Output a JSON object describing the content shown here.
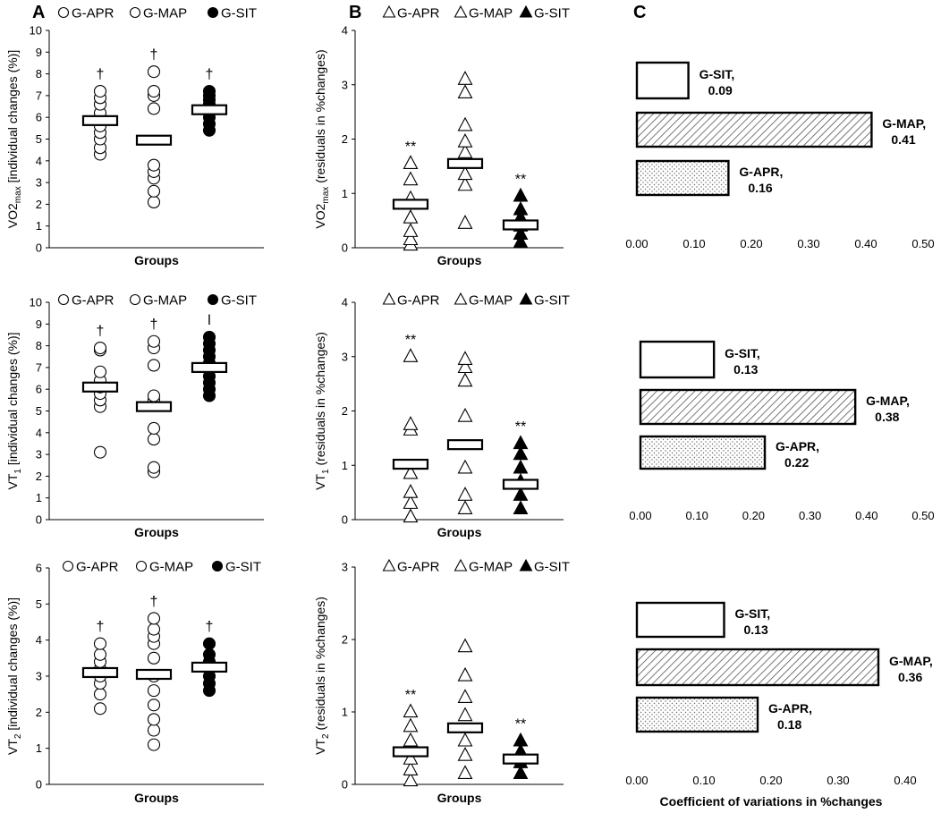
{
  "panel_letters": [
    "A",
    "B",
    "C"
  ],
  "chart_data": [
    {
      "id": "A1",
      "type": "scatter",
      "panel": "A",
      "row": 0,
      "xlabel": "Groups",
      "ylabel_main": "VO2",
      "ylabel_sub": "max",
      "ylabel_rest": " [individual changes (%)]",
      "ylim": [
        0,
        10
      ],
      "yticks": [
        0,
        1,
        2,
        3,
        4,
        5,
        6,
        7,
        8,
        9,
        10
      ],
      "legend": [
        "G-APR",
        "G-MAP",
        "G-SIT"
      ],
      "series": [
        {
          "name": "G-APR",
          "marker": "open-circle",
          "mean": 5.85,
          "values": [
            4.3,
            4.6,
            5.0,
            5.3,
            5.6,
            5.9,
            6.2,
            6.6,
            6.9,
            7.2
          ],
          "annotation": "†"
        },
        {
          "name": "G-MAP",
          "marker": "open-circle",
          "mean": 4.95,
          "values": [
            2.1,
            2.6,
            3.2,
            3.5,
            3.8,
            6.4,
            7.0,
            7.2,
            8.1
          ],
          "annotation": "†"
        },
        {
          "name": "G-SIT",
          "marker": "filled-circle",
          "mean": 6.35,
          "values": [
            5.4,
            5.7,
            6.0,
            6.2,
            6.4,
            6.6,
            6.8,
            7.0,
            7.2
          ],
          "annotation": "†"
        }
      ]
    },
    {
      "id": "A2",
      "type": "scatter",
      "panel": "A",
      "row": 1,
      "xlabel": "Groups",
      "ylabel_main": "VT",
      "ylabel_sub": "1",
      "ylabel_rest": " [individual changes (%)]",
      "ylim": [
        0,
        10
      ],
      "yticks": [
        0,
        1,
        2,
        3,
        4,
        5,
        6,
        7,
        8,
        9,
        10
      ],
      "legend": [
        "G-APR",
        "G-MAP",
        "G-SIT"
      ],
      "series": [
        {
          "name": "G-APR",
          "marker": "open-circle",
          "mean": 6.1,
          "values": [
            3.1,
            5.2,
            5.5,
            5.8,
            6.1,
            6.4,
            6.8,
            7.8,
            7.9
          ],
          "annotation": "†"
        },
        {
          "name": "G-MAP",
          "marker": "open-circle",
          "mean": 5.2,
          "values": [
            2.2,
            2.4,
            3.7,
            4.2,
            5.5,
            5.7,
            7.1,
            7.9,
            8.2
          ],
          "annotation": "†"
        },
        {
          "name": "G-SIT",
          "marker": "filled-circle",
          "mean": 7.0,
          "values": [
            5.7,
            6.0,
            6.3,
            6.6,
            6.9,
            7.2,
            7.5,
            7.8,
            8.1,
            8.4
          ],
          "annotation": "ǀ"
        }
      ]
    },
    {
      "id": "A3",
      "type": "scatter",
      "panel": "A",
      "row": 2,
      "xlabel": "Groups",
      "ylabel_main": "VT",
      "ylabel_sub": "2",
      "ylabel_rest": " [individual changes (%)]",
      "ylim": [
        0,
        6
      ],
      "yticks": [
        0,
        1,
        2,
        3,
        4,
        5,
        6
      ],
      "legend": [
        "G-APR",
        "G-MAP",
        "G-SIT"
      ],
      "series": [
        {
          "name": "G-APR",
          "marker": "open-circle",
          "mean": 3.1,
          "values": [
            2.1,
            2.5,
            2.8,
            3.0,
            3.2,
            3.4,
            3.6,
            3.9
          ],
          "annotation": "†"
        },
        {
          "name": "G-MAP",
          "marker": "open-circle",
          "mean": 3.05,
          "values": [
            1.1,
            1.5,
            1.8,
            2.2,
            2.6,
            3.0,
            3.5,
            3.9,
            4.1,
            4.3,
            4.6
          ],
          "annotation": "†"
        },
        {
          "name": "G-SIT",
          "marker": "filled-circle",
          "mean": 3.25,
          "values": [
            2.6,
            2.8,
            3.0,
            3.2,
            3.4,
            3.6,
            3.9
          ],
          "annotation": "†"
        }
      ]
    },
    {
      "id": "B1",
      "type": "scatter",
      "panel": "B",
      "row": 0,
      "xlabel": "Groups",
      "ylabel_main": "VO2",
      "ylabel_sub": "max",
      "ylabel_rest": " (residuals in %changes)",
      "ylim": [
        0,
        4
      ],
      "yticks": [
        0,
        1,
        2,
        3,
        4
      ],
      "legend": [
        "G-APR",
        "G-MAP",
        "G-SIT"
      ],
      "series": [
        {
          "name": "G-APR",
          "marker": "open-triangle",
          "mean": 0.8,
          "values": [
            0.05,
            0.15,
            0.3,
            0.55,
            0.9,
            1.25,
            1.55
          ],
          "annotation": "**"
        },
        {
          "name": "G-MAP",
          "marker": "open-triangle",
          "mean": 1.55,
          "values": [
            0.45,
            1.15,
            1.35,
            1.75,
            1.95,
            2.25,
            2.85,
            3.1
          ],
          "annotation": ""
        },
        {
          "name": "G-SIT",
          "marker": "filled-triangle",
          "mean": 0.42,
          "values": [
            0.1,
            0.25,
            0.4,
            0.55,
            0.7,
            0.95
          ],
          "annotation": "**"
        }
      ]
    },
    {
      "id": "B2",
      "type": "scatter",
      "panel": "B",
      "row": 1,
      "xlabel": "Groups",
      "ylabel_main": "VT",
      "ylabel_sub": "1",
      "ylabel_rest": " (residuals in %changes)",
      "ylim": [
        0,
        4
      ],
      "yticks": [
        0,
        1,
        2,
        3,
        4
      ],
      "legend": [
        "G-APR",
        "G-MAP",
        "G-SIT"
      ],
      "series": [
        {
          "name": "G-APR",
          "marker": "open-triangle",
          "mean": 1.02,
          "values": [
            0.05,
            0.3,
            0.5,
            0.85,
            1.65,
            1.75,
            3.0
          ],
          "annotation": "**"
        },
        {
          "name": "G-MAP",
          "marker": "open-triangle",
          "mean": 1.38,
          "values": [
            0.2,
            0.45,
            0.95,
            1.9,
            2.55,
            2.8,
            2.95
          ],
          "annotation": ""
        },
        {
          "name": "G-SIT",
          "marker": "filled-triangle",
          "mean": 0.65,
          "values": [
            0.2,
            0.45,
            0.7,
            0.95,
            1.2,
            1.4
          ],
          "annotation": "**"
        }
      ]
    },
    {
      "id": "B3",
      "type": "scatter",
      "panel": "B",
      "row": 2,
      "xlabel": "Groups",
      "ylabel_main": "VT",
      "ylabel_sub": "2",
      "ylabel_rest": " (residuals in %changes)",
      "ylim": [
        0,
        3
      ],
      "yticks": [
        0,
        1,
        2,
        3
      ],
      "legend": [
        "G-APR",
        "G-MAP",
        "G-SIT"
      ],
      "series": [
        {
          "name": "G-APR",
          "marker": "open-triangle",
          "mean": 0.45,
          "values": [
            0.05,
            0.2,
            0.35,
            0.6,
            0.8,
            1.0
          ],
          "annotation": "**"
        },
        {
          "name": "G-MAP",
          "marker": "open-triangle",
          "mean": 0.78,
          "values": [
            0.15,
            0.4,
            0.6,
            0.95,
            1.2,
            1.5,
            1.9
          ],
          "annotation": ""
        },
        {
          "name": "G-SIT",
          "marker": "filled-triangle",
          "mean": 0.35,
          "values": [
            0.15,
            0.3,
            0.45,
            0.6
          ],
          "annotation": "**"
        }
      ]
    },
    {
      "id": "C1",
      "type": "bar",
      "orientation": "horizontal",
      "panel": "C",
      "row": 0,
      "xlim": [
        0,
        0.5
      ],
      "xticks": [
        "0.00",
        "0.10",
        "0.20",
        "0.30",
        "0.40",
        "0.50"
      ],
      "categories": [
        "G-SIT,",
        "G-MAP,",
        "G-APR,"
      ],
      "values": [
        0.09,
        0.41,
        0.16
      ],
      "value_labels": [
        "0.09",
        "0.41",
        "0.16"
      ],
      "patterns": [
        "none",
        "hatch",
        "dots"
      ]
    },
    {
      "id": "C2",
      "type": "bar",
      "orientation": "horizontal",
      "panel": "C",
      "row": 1,
      "xlim": [
        0,
        0.5
      ],
      "xticks": [
        "0.00",
        "0.10",
        "0.20",
        "0.30",
        "0.40",
        "0.50"
      ],
      "categories": [
        "G-SIT,",
        "G-MAP,",
        "G-APR,"
      ],
      "values": [
        0.13,
        0.38,
        0.22
      ],
      "value_labels": [
        "0.13",
        "0.38",
        "0.22"
      ],
      "patterns": [
        "none",
        "hatch",
        "dots"
      ]
    },
    {
      "id": "C3",
      "type": "bar",
      "orientation": "horizontal",
      "panel": "C",
      "row": 2,
      "xlim": [
        0,
        0.4
      ],
      "xticks": [
        "0.00",
        "0.10",
        "0.20",
        "0.30",
        "0.40"
      ],
      "xlabel": "Coefficient of variations in %changes",
      "categories": [
        "G-SIT,",
        "G-MAP,",
        "G-APR,"
      ],
      "values": [
        0.13,
        0.36,
        0.18
      ],
      "value_labels": [
        "0.13",
        "0.36",
        "0.18"
      ],
      "patterns": [
        "none",
        "hatch",
        "dots"
      ]
    }
  ]
}
